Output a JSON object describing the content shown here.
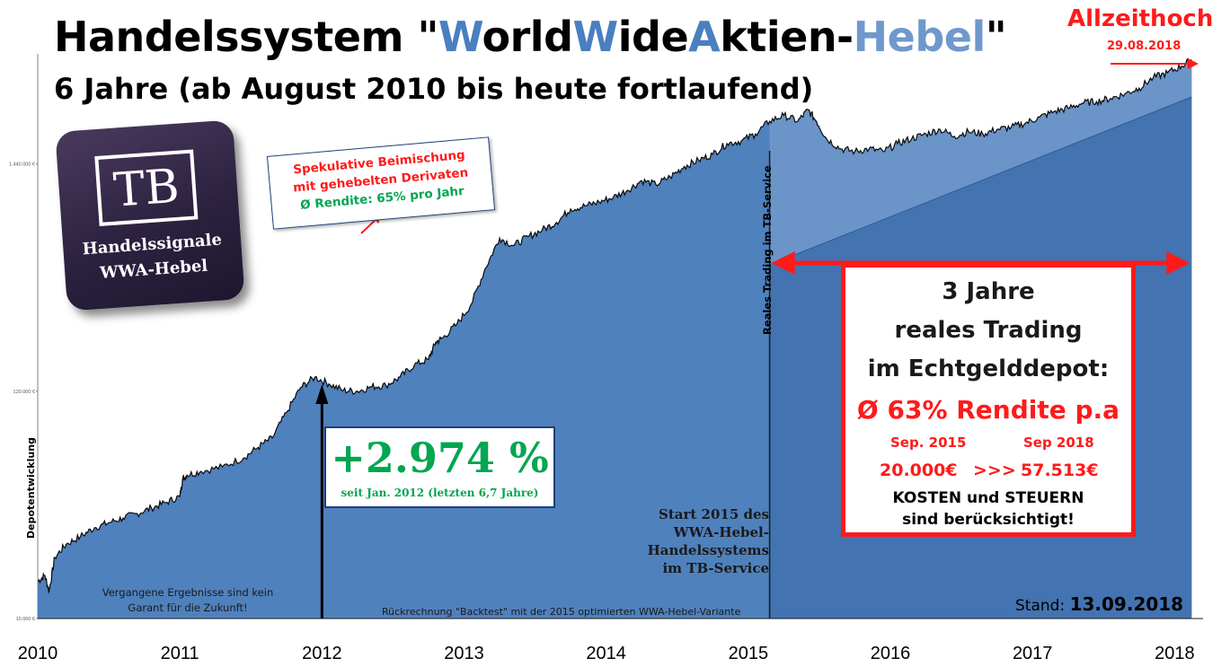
{
  "title": {
    "prefix": "Handelssystem \"",
    "w1": "W",
    "p1": "orld",
    "w2": "W",
    "p2": "ide",
    "w3": "A",
    "p3": "ktien-",
    "w4": "Hebel",
    "suffix": "\""
  },
  "subtitle": "6 Jahre (ab August 2010 bis heute fortlaufend)",
  "all_time_high": {
    "label": "Allzeithoch",
    "date": "29.08.2018"
  },
  "logo": {
    "letters": "TB",
    "line1": "Handelssignale",
    "line2": "WWA-Hebel"
  },
  "speculative_box": {
    "line1": "Spekulative Beimischung",
    "line2": "mit gehebelten Derivaten",
    "line3": "Ø Rendite: 65% pro Jahr"
  },
  "gain_box": {
    "value": "+2.974 %",
    "note": "seit Jan. 2012 (letzten 6,7 Jahre)"
  },
  "real_trading_box": {
    "line1": "3 Jahre",
    "line2": "reales Trading",
    "line3": "im Echtgelddepot:",
    "rendite": "Ø 63% Rendite p.a",
    "from_label": "Sep. 2015",
    "to_label": "Sep 2018",
    "from_value": "20.000€",
    "arrow": ">>>",
    "to_value": "57.513€",
    "note1": "KOSTEN und STEUERN",
    "note2": "sind berücksichtigt!"
  },
  "vertical_label_real": "Reales Trading im TB-Service",
  "start_2015": [
    "Start 2015 des",
    "WWA-Hebel-",
    "Handelssystems",
    "im TB-Service"
  ],
  "disclaimer": [
    "Vergangene Ergebnisse sind kein",
    "Garant für die Zukunft!"
  ],
  "backtest_note": "Rückrechnung \"Backtest\" mit der 2015 optimierten WWA-Hebel-Variante",
  "stand": {
    "label": "Stand:",
    "date": "13.09.2018"
  },
  "colors": {
    "area": "#4f81bd",
    "area_dark": "#3f6fad",
    "area_light": "#6b95c8",
    "red": "#ff1a1a",
    "green": "#00a650"
  },
  "chart_data": {
    "type": "area",
    "ylabel": "Depotentwicklung",
    "y_scale": "log",
    "ylim": [
      10000,
      4800000
    ],
    "y_ticks": [
      10000,
      120000,
      1440000
    ],
    "y_tick_labels": [
      "10.000 €",
      "120.000 €",
      "1.440.000 €"
    ],
    "xlim": [
      2010.0,
      2018.2
    ],
    "x_tick_labels": [
      "2010",
      "2011",
      "2012",
      "2013",
      "2014",
      "2015",
      "2016",
      "2017",
      "2018"
    ],
    "x_ticks": [
      2010,
      2011,
      2012,
      2013,
      2014,
      2015,
      2016,
      2017,
      2018
    ],
    "x": [
      2010.0,
      2010.05,
      2010.08,
      2010.12,
      2010.2,
      2010.3,
      2010.4,
      2010.5,
      2010.6,
      2010.7,
      2010.8,
      2010.9,
      2011.0,
      2011.02,
      2011.05,
      2011.15,
      2011.3,
      2011.45,
      2011.55,
      2011.65,
      2011.75,
      2011.85,
      2011.95,
      2012.05,
      2012.15,
      2012.25,
      2012.35,
      2012.45,
      2012.55,
      2012.65,
      2012.75,
      2012.8,
      2012.85,
      2012.95,
      2013.05,
      2013.15,
      2013.25,
      2013.35,
      2013.45,
      2013.55,
      2013.65,
      2013.75,
      2013.85,
      2013.95,
      2014.05,
      2014.15,
      2014.25,
      2014.35,
      2014.45,
      2014.55,
      2014.65,
      2014.75,
      2014.85,
      2014.95,
      2015.05,
      2015.15,
      2015.25,
      2015.35,
      2015.42,
      2015.48,
      2015.55,
      2015.65,
      2015.75,
      2015.85,
      2015.95,
      2016.05,
      2016.15,
      2016.25,
      2016.35,
      2016.45,
      2016.55,
      2016.65,
      2016.75,
      2016.85,
      2016.95,
      2017.05,
      2017.15,
      2017.25,
      2017.35,
      2017.45,
      2017.55,
      2017.65,
      2017.75,
      2017.85,
      2017.95,
      2018.05,
      2018.12
    ],
    "y": [
      15000,
      16000,
      13500,
      19500,
      22500,
      24500,
      27000,
      28500,
      30000,
      31500,
      33500,
      35500,
      38000,
      46000,
      48000,
      50000,
      52500,
      58000,
      65000,
      72000,
      95000,
      125000,
      140000,
      130000,
      121000,
      120000,
      126000,
      128000,
      140000,
      160000,
      170000,
      205000,
      215000,
      250000,
      310000,
      460000,
      640000,
      590000,
      650000,
      700000,
      760000,
      880000,
      910000,
      950000,
      1000000,
      1080000,
      1200000,
      1150000,
      1250000,
      1400000,
      1500000,
      1600000,
      1800000,
      1850000,
      2000000,
      2300000,
      2450000,
      2300000,
      2600000,
      2300000,
      1900000,
      1700000,
      1650000,
      1700000,
      1650000,
      1800000,
      1900000,
      2000000,
      2100000,
      1950000,
      2050000,
      2000000,
      2100000,
      2150000,
      2250000,
      2400000,
      2550000,
      2650000,
      2800000,
      2850000,
      2950000,
      3100000,
      3300000,
      3700000,
      3900000,
      4200000,
      4500000
    ]
  }
}
